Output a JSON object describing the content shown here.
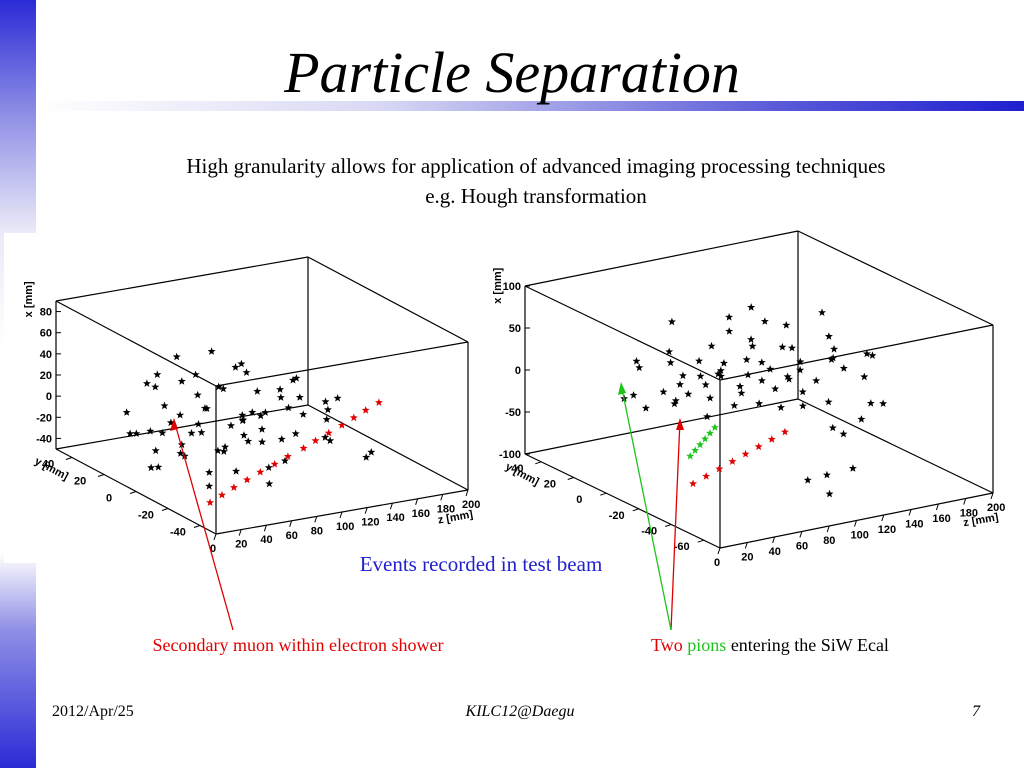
{
  "slide": {
    "title": "Particle Separation",
    "subtitle_line1": "High granularity allows for application of advanced imaging processing techniques",
    "subtitle_line2": "e.g. Hough transformation",
    "events_caption": "Events recorded in test beam",
    "caption_left": "Secondary muon within electron shower",
    "caption_right_part1": "Two ",
    "caption_right_part2": "pions",
    "caption_right_part3": " entering the SiW Ecal",
    "footer_date": "2012/Apr/25",
    "footer_conference": "KILC12@Daegu",
    "footer_page": "7",
    "colors": {
      "accent": "#1f1fd0",
      "red": "#e00000",
      "green": "#1cc41c"
    }
  },
  "chart_data": [
    {
      "type": "scatter",
      "title": "",
      "xlabel": "z [mm]",
      "ylabel": "x [mm]",
      "zlabel": "y [mm]",
      "x_ticks": [
        "0",
        "20",
        "40",
        "60",
        "80",
        "100",
        "120",
        "140",
        "160",
        "180",
        "200"
      ],
      "x_tick_values": [
        0,
        20,
        40,
        60,
        80,
        100,
        120,
        140,
        160,
        180,
        200
      ],
      "y_ticks": [
        "-40",
        "-20",
        "0",
        "20",
        "40"
      ],
      "y_tick_values": [
        -40,
        -20,
        0,
        20,
        40
      ],
      "v_ticks": [
        "-40",
        "-20",
        "0",
        "20",
        "40",
        "60",
        "80"
      ],
      "v_tick_values": [
        -40,
        -20,
        0,
        20,
        40,
        60,
        80
      ],
      "xlim": [
        0,
        200
      ],
      "ylim": [
        -50,
        50
      ],
      "vlim": [
        -50,
        90
      ],
      "series": [
        {
          "name": "",
          "color": "#000000",
          "points": [
            [
              5,
              -10,
              -20
            ],
            [
              5,
              -5,
              10
            ],
            [
              8,
              10,
              -5
            ],
            [
              10,
              -20,
              0
            ],
            [
              12,
              0,
              -30
            ],
            [
              15,
              -10,
              20
            ],
            [
              18,
              20,
              5
            ],
            [
              20,
              -30,
              -12
            ],
            [
              22,
              5,
              -20
            ],
            [
              25,
              -15,
              12
            ],
            [
              28,
              10,
              35
            ],
            [
              30,
              -5,
              -8
            ],
            [
              32,
              25,
              -22
            ],
            [
              35,
              0,
              15
            ],
            [
              38,
              -25,
              0
            ],
            [
              40,
              15,
              -15
            ],
            [
              42,
              -10,
              28
            ],
            [
              45,
              5,
              -30
            ],
            [
              48,
              20,
              5
            ],
            [
              50,
              -20,
              18
            ],
            [
              52,
              0,
              -5
            ],
            [
              55,
              30,
              25
            ],
            [
              58,
              -10,
              -12
            ],
            [
              60,
              10,
              40
            ],
            [
              62,
              -30,
              8
            ],
            [
              65,
              0,
              -25
            ],
            [
              68,
              15,
              15
            ],
            [
              70,
              -15,
              -5
            ],
            [
              72,
              5,
              30
            ],
            [
              75,
              20,
              -18
            ],
            [
              78,
              -5,
              10
            ],
            [
              80,
              -20,
              -28
            ],
            [
              82,
              10,
              22
            ],
            [
              85,
              0,
              0
            ],
            [
              88,
              25,
              -10
            ],
            [
              90,
              -10,
              14
            ],
            [
              92,
              5,
              -20
            ],
            [
              95,
              -25,
              5
            ],
            [
              98,
              15,
              35
            ],
            [
              100,
              0,
              -12
            ],
            [
              102,
              -15,
              20
            ],
            [
              105,
              10,
              -5
            ],
            [
              108,
              -5,
              28
            ],
            [
              110,
              20,
              -22
            ],
            [
              112,
              -30,
              2
            ],
            [
              115,
              0,
              15
            ],
            [
              118,
              15,
              -15
            ],
            [
              120,
              -10,
              6
            ],
            [
              122,
              5,
              -30
            ],
            [
              125,
              -20,
              25
            ],
            [
              128,
              25,
              -2
            ],
            [
              130,
              0,
              12
            ],
            [
              135,
              -15,
              -18
            ],
            [
              140,
              10,
              20
            ],
            [
              145,
              -5,
              -8
            ],
            [
              150,
              20,
              8
            ],
            [
              155,
              -25,
              -25
            ],
            [
              160,
              0,
              5
            ],
            [
              165,
              10,
              -15
            ],
            [
              170,
              -10,
              -45
            ],
            [
              15,
              5,
              45
            ],
            [
              30,
              -5,
              52
            ],
            [
              45,
              10,
              60
            ],
            [
              60,
              0,
              70
            ],
            [
              75,
              -10,
              55
            ],
            [
              90,
              5,
              48
            ],
            [
              20,
              -30,
              -25
            ],
            [
              35,
              -35,
              -10
            ],
            [
              55,
              -40,
              -22
            ],
            [
              70,
              -38,
              -5
            ]
          ]
        },
        {
          "name": "",
          "color": "#e00000",
          "points": [
            [
              8,
              -40,
              -30
            ],
            [
              20,
              -38,
              -27
            ],
            [
              32,
              -36,
              -24
            ],
            [
              45,
              -34,
              -21
            ],
            [
              58,
              -32,
              -18
            ],
            [
              72,
              -30,
              -15
            ],
            [
              85,
              -28,
              -12
            ],
            [
              100,
              -26,
              -9
            ],
            [
              112,
              -24,
              -6
            ],
            [
              125,
              -22,
              -3
            ],
            [
              138,
              -20,
              0
            ],
            [
              150,
              -18,
              3
            ],
            [
              162,
              -16,
              6
            ],
            [
              175,
              -14,
              9
            ]
          ]
        }
      ]
    },
    {
      "type": "scatter",
      "title": "",
      "xlabel": "z [mm]",
      "ylabel": "x [mm]",
      "zlabel": "y [mm]",
      "x_ticks": [
        "0",
        "20",
        "40",
        "60",
        "80",
        "100",
        "120",
        "140",
        "160",
        "180",
        "200"
      ],
      "x_tick_values": [
        0,
        20,
        40,
        60,
        80,
        100,
        120,
        140,
        160,
        180,
        200
      ],
      "y_ticks": [
        "-60",
        "-40",
        "-20",
        "0",
        "20",
        "40"
      ],
      "y_tick_values": [
        -60,
        -40,
        -20,
        0,
        20,
        40
      ],
      "v_ticks": [
        "-100",
        "-50",
        "0",
        "50",
        "100"
      ],
      "v_tick_values": [
        -100,
        -50,
        0,
        50,
        100
      ],
      "xlim": [
        0,
        200
      ],
      "ylim": [
        -70,
        50
      ],
      "vlim": [
        -100,
        100
      ],
      "series": [
        {
          "name": "",
          "color": "#000000",
          "points": [
            [
              20,
              0,
              10
            ],
            [
              25,
              10,
              -5
            ],
            [
              30,
              -10,
              20
            ],
            [
              35,
              5,
              -15
            ],
            [
              40,
              15,
              30
            ],
            [
              45,
              -5,
              0
            ],
            [
              48,
              20,
              15
            ],
            [
              50,
              0,
              -10
            ],
            [
              55,
              -15,
              25
            ],
            [
              58,
              10,
              40
            ],
            [
              60,
              5,
              5
            ],
            [
              62,
              -10,
              -20
            ],
            [
              65,
              15,
              20
            ],
            [
              68,
              0,
              35
            ],
            [
              70,
              -20,
              0
            ],
            [
              72,
              10,
              -15
            ],
            [
              75,
              5,
              10
            ],
            [
              78,
              -5,
              25
            ],
            [
              80,
              20,
              -5
            ],
            [
              82,
              0,
              15
            ],
            [
              85,
              -15,
              45
            ],
            [
              88,
              10,
              -25
            ],
            [
              90,
              5,
              5
            ],
            [
              92,
              -10,
              20
            ],
            [
              95,
              15,
              30
            ],
            [
              98,
              0,
              -5
            ],
            [
              100,
              -20,
              10
            ],
            [
              102,
              10,
              50
            ],
            [
              105,
              5,
              -20
            ],
            [
              108,
              -5,
              25
            ],
            [
              110,
              20,
              0
            ],
            [
              112,
              0,
              -30
            ],
            [
              115,
              -15,
              15
            ],
            [
              118,
              10,
              35
            ],
            [
              120,
              5,
              -10
            ],
            [
              122,
              -10,
              5
            ],
            [
              125,
              15,
              20
            ],
            [
              128,
              0,
              -40
            ],
            [
              130,
              -20,
              10
            ],
            [
              132,
              10,
              -5
            ],
            [
              135,
              5,
              25
            ],
            [
              138,
              -5,
              -20
            ],
            [
              140,
              20,
              40
            ],
            [
              142,
              0,
              0
            ],
            [
              145,
              -15,
              -25
            ],
            [
              148,
              10,
              15
            ],
            [
              150,
              5,
              -50
            ],
            [
              155,
              -10,
              30
            ],
            [
              160,
              15,
              -10
            ],
            [
              165,
              0,
              5
            ],
            [
              170,
              -20,
              -30
            ],
            [
              175,
              10,
              20
            ],
            [
              180,
              5,
              -15
            ],
            [
              185,
              -5,
              10
            ],
            [
              190,
              20,
              -20
            ],
            [
              195,
              0,
              0
            ],
            [
              60,
              10,
              75
            ],
            [
              90,
              0,
              80
            ],
            [
              120,
              -10,
              70
            ],
            [
              150,
              -20,
              -60
            ],
            [
              100,
              -40,
              -80
            ],
            [
              110,
              -45,
              -95
            ],
            [
              120,
              -35,
              -85
            ],
            [
              130,
              20,
              60
            ],
            [
              160,
              -5,
              -70
            ],
            [
              170,
              10,
              50
            ],
            [
              145,
              -30,
              -90
            ],
            [
              175,
              -10,
              -60
            ],
            [
              185,
              -15,
              -40
            ],
            [
              195,
              5,
              -30
            ]
          ]
        },
        {
          "name": "",
          "color": "#e00000",
          "points": [
            [
              10,
              -45,
              -50
            ],
            [
              22,
              -43,
              -47
            ],
            [
              34,
              -41,
              -44
            ],
            [
              46,
              -39,
              -41
            ],
            [
              58,
              -37,
              -38
            ],
            [
              70,
              -35,
              -35
            ],
            [
              82,
              -33,
              -32
            ],
            [
              94,
              -31,
              -29
            ]
          ]
        },
        {
          "name": "",
          "color": "#1cc41c",
          "points": [
            [
              2,
              -50,
              -10
            ],
            [
              8,
              -48,
              -7
            ],
            [
              14,
              -46,
              -4
            ],
            [
              20,
              -44,
              -1
            ],
            [
              26,
              -42,
              2
            ],
            [
              32,
              -40,
              5
            ]
          ]
        }
      ]
    }
  ]
}
